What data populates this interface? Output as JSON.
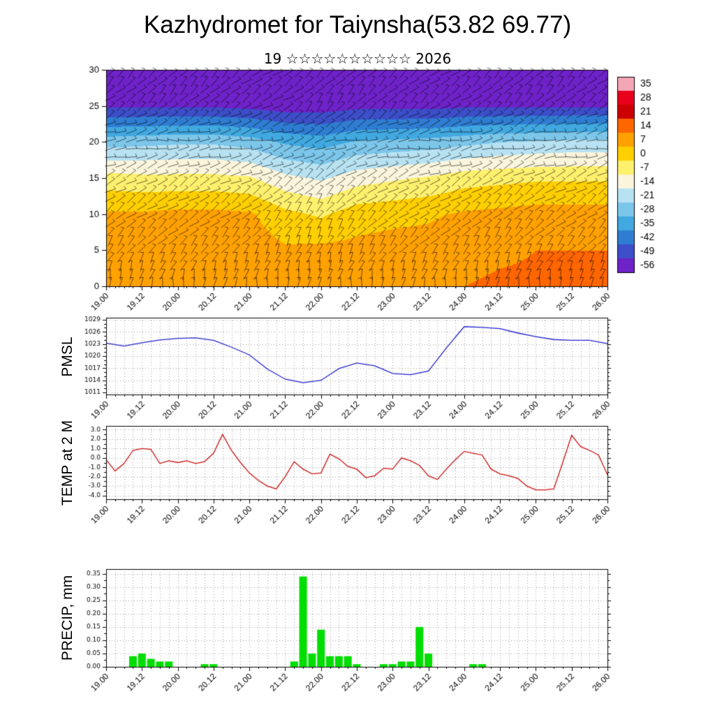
{
  "title": "Kazhydromet for Taiynsha(53.82 69.77)",
  "subtitle": "19 ☆☆☆☆☆☆☆☆☆☆ 2026",
  "time_axis": {
    "major_labels": [
      "19.00",
      "19.12",
      "20.00",
      "20.12",
      "21.00",
      "21.12",
      "22.00",
      "22.12",
      "23.00",
      "23.12",
      "24.00",
      "24.12",
      "25.00",
      "25.12",
      "26.00"
    ],
    "total_hours": 168,
    "major_step_hours": 12,
    "minor_step_hours": 3
  },
  "chart_data": [
    {
      "type": "heatmap",
      "name": "temperature-wind-cross-section",
      "yticks": [
        "30",
        "25",
        "20",
        "15",
        "10",
        "5",
        "0"
      ],
      "levels": [
        0,
        5,
        10,
        15,
        20,
        25,
        30
      ],
      "col_hours_step": 12,
      "values_by_level": [
        [
          6,
          6,
          6,
          6,
          5,
          4,
          5,
          5,
          5,
          6,
          7,
          8,
          8,
          8,
          8
        ],
        [
          4,
          4,
          5,
          5,
          4,
          1,
          2,
          2,
          3,
          3,
          5,
          6,
          7,
          7,
          7
        ],
        [
          1,
          1,
          2,
          2,
          1,
          -5,
          -8,
          -3,
          -2,
          -1,
          1,
          2,
          3,
          3,
          3
        ],
        [
          -11,
          -12,
          -12,
          -12,
          -13,
          -19,
          -22,
          -17,
          -15,
          -13,
          -10,
          -9,
          -8,
          -8,
          -8
        ],
        [
          -31,
          -30,
          -29,
          -29,
          -31,
          -36,
          -38,
          -34,
          -33,
          -32,
          -30,
          -28,
          -27,
          -26,
          -26
        ],
        [
          -57,
          -57,
          -57,
          -57,
          -58,
          -60,
          -60,
          -58,
          -58,
          -58,
          -57,
          -57,
          -57,
          -57,
          -57
        ],
        [
          -60,
          -60,
          -59,
          -59,
          -60,
          -61,
          -61,
          -60,
          -60,
          -60,
          -59,
          -59,
          -59,
          -58,
          -58
        ]
      ],
      "barb_angles_by_level": [
        [
          85,
          85,
          85,
          85,
          85,
          85,
          85,
          85,
          85,
          85,
          85,
          85,
          85,
          85,
          85
        ],
        [
          60,
          55,
          50,
          55,
          60,
          65,
          70,
          60,
          55,
          50,
          55,
          60,
          55,
          50,
          55
        ],
        [
          40,
          35,
          30,
          35,
          40,
          50,
          60,
          45,
          40,
          35,
          40,
          45,
          40,
          35,
          40
        ],
        [
          25,
          30,
          35,
          30,
          25,
          35,
          45,
          35,
          30,
          25,
          30,
          35,
          30,
          25,
          30
        ],
        [
          5,
          5,
          0,
          5,
          10,
          15,
          20,
          10,
          5,
          0,
          5,
          10,
          5,
          0,
          5
        ],
        [
          35,
          40,
          45,
          40,
          35,
          30,
          55,
          50,
          45,
          40,
          35,
          40,
          45,
          40,
          35
        ],
        [
          45,
          45,
          50,
          45,
          40,
          35,
          40,
          45,
          40,
          35,
          40,
          45,
          50,
          45,
          40
        ]
      ],
      "colorbar": {
        "labels": [
          "35",
          "28",
          "21",
          "14",
          "7",
          "0",
          "-7",
          "-14",
          "-21",
          "-28",
          "-35",
          "-42",
          "-49",
          "-56"
        ],
        "colors": [
          "#f2a6b6",
          "#e8001c",
          "#cc0000",
          "#ff6600",
          "#ffa100",
          "#ffcf00",
          "#fff06e",
          "#faf5dc",
          "#b8e2f2",
          "#7cc6ea",
          "#41a8e0",
          "#2f7dd2",
          "#3c4ec8",
          "#6e22c8"
        ]
      }
    },
    {
      "type": "line",
      "name": "pmsl",
      "title": "PMSL",
      "color": "#2222cc",
      "yticks": [
        "1029",
        "1026",
        "1023",
        "1020",
        "1017",
        "1014",
        "1011"
      ],
      "ylim": [
        1010.5,
        1029.5
      ],
      "minor_step": 1,
      "x_step_hours": 6,
      "values": [
        1023.2,
        1022.5,
        1023.3,
        1024.0,
        1024.4,
        1024.5,
        1023.9,
        1022.2,
        1020.3,
        1016.8,
        1014.3,
        1013.4,
        1014.0,
        1016.9,
        1018.3,
        1017.6,
        1015.7,
        1015.4,
        1016.3,
        1022.0,
        1027.3,
        1027.1,
        1026.8,
        1025.7,
        1024.8,
        1024.1,
        1023.9,
        1023.9,
        1023.1
      ]
    },
    {
      "type": "line",
      "name": "temp-at-2m",
      "title": "TEMP at 2 M",
      "color": "#cc1111",
      "yticks": [
        "3.0",
        "2.0",
        "1.0",
        "0.0",
        "-1.0",
        "-2.0",
        "-3.0",
        "-4.0"
      ],
      "ylim": [
        -4.4,
        3.4
      ],
      "minor_step": 0.5,
      "x_step_hours": 3,
      "values": [
        -0.2,
        -1.4,
        -0.6,
        0.8,
        1.0,
        0.9,
        -0.6,
        -0.3,
        -0.5,
        -0.3,
        -0.6,
        -0.4,
        0.5,
        2.5,
        0.8,
        -0.5,
        -1.6,
        -2.4,
        -3.0,
        -3.3,
        -2.0,
        -0.4,
        -1.2,
        -1.7,
        -1.6,
        0.4,
        -0.1,
        -0.9,
        -1.2,
        -2.1,
        -1.9,
        -1.1,
        -1.2,
        0.0,
        -0.3,
        -0.8,
        -1.9,
        -2.3,
        -1.2,
        -0.2,
        0.7,
        0.5,
        0.3,
        -1.2,
        -1.7,
        -1.9,
        -2.2,
        -3.0,
        -3.4,
        -3.4,
        -3.3,
        -0.5,
        2.4,
        1.2,
        0.8,
        0.3,
        -1.8
      ]
    },
    {
      "type": "bar",
      "name": "precip",
      "title": "PRECIP, mm",
      "color": "#00dd00",
      "yticks": [
        "0.35",
        "0.30",
        "0.25",
        "0.20",
        "0.15",
        "0.10",
        "0.05",
        "0.00"
      ],
      "ylim": [
        0,
        0.368
      ],
      "minor_step": 0.025,
      "x_step_hours": 3,
      "values": [
        0,
        0,
        0,
        0.04,
        0.05,
        0.03,
        0.02,
        0.02,
        0,
        0,
        0,
        0.01,
        0.01,
        0,
        0,
        0,
        0,
        0,
        0,
        0,
        0,
        0.02,
        0.34,
        0.05,
        0.14,
        0.04,
        0.04,
        0.04,
        0.01,
        0,
        0,
        0.01,
        0.01,
        0.02,
        0.02,
        0.15,
        0.05,
        0,
        0,
        0,
        0,
        0.01,
        0.01,
        0,
        0,
        0,
        0,
        0,
        0,
        0,
        0,
        0,
        0,
        0,
        0,
        0,
        0
      ]
    }
  ]
}
